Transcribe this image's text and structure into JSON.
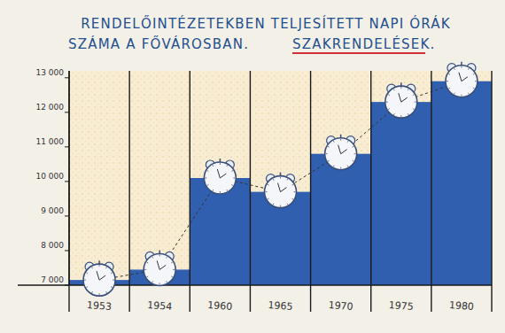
{
  "chart_data": {
    "type": "bar",
    "title": "RENDELŐINTÉZETEKBEN TELJESÍTETT NAPI ÓRÁK SZÁMA A FŐVÁROSBAN.",
    "subtitle": "SZAKRENDELÉSEK.",
    "categories": [
      "1953",
      "1954",
      "1960",
      "1965",
      "1970",
      "1975",
      "1980"
    ],
    "values": [
      7150,
      7450,
      10100,
      9700,
      10800,
      12300,
      12900
    ],
    "color": "#2f5fae",
    "marker": "clock",
    "line_style": "dashed",
    "ylim": [
      7000,
      13200
    ],
    "yticks": [
      {
        "value": 7000,
        "label": "7 000"
      },
      {
        "value": 8000,
        "label": "8 000"
      },
      {
        "value": 9000,
        "label": "9 000"
      },
      {
        "value": 10000,
        "label": "10 000"
      },
      {
        "value": 11000,
        "label": "11 000"
      },
      {
        "value": 12000,
        "label": "12 000"
      },
      {
        "value": 13000,
        "label": "13 000"
      }
    ],
    "grid": false
  }
}
